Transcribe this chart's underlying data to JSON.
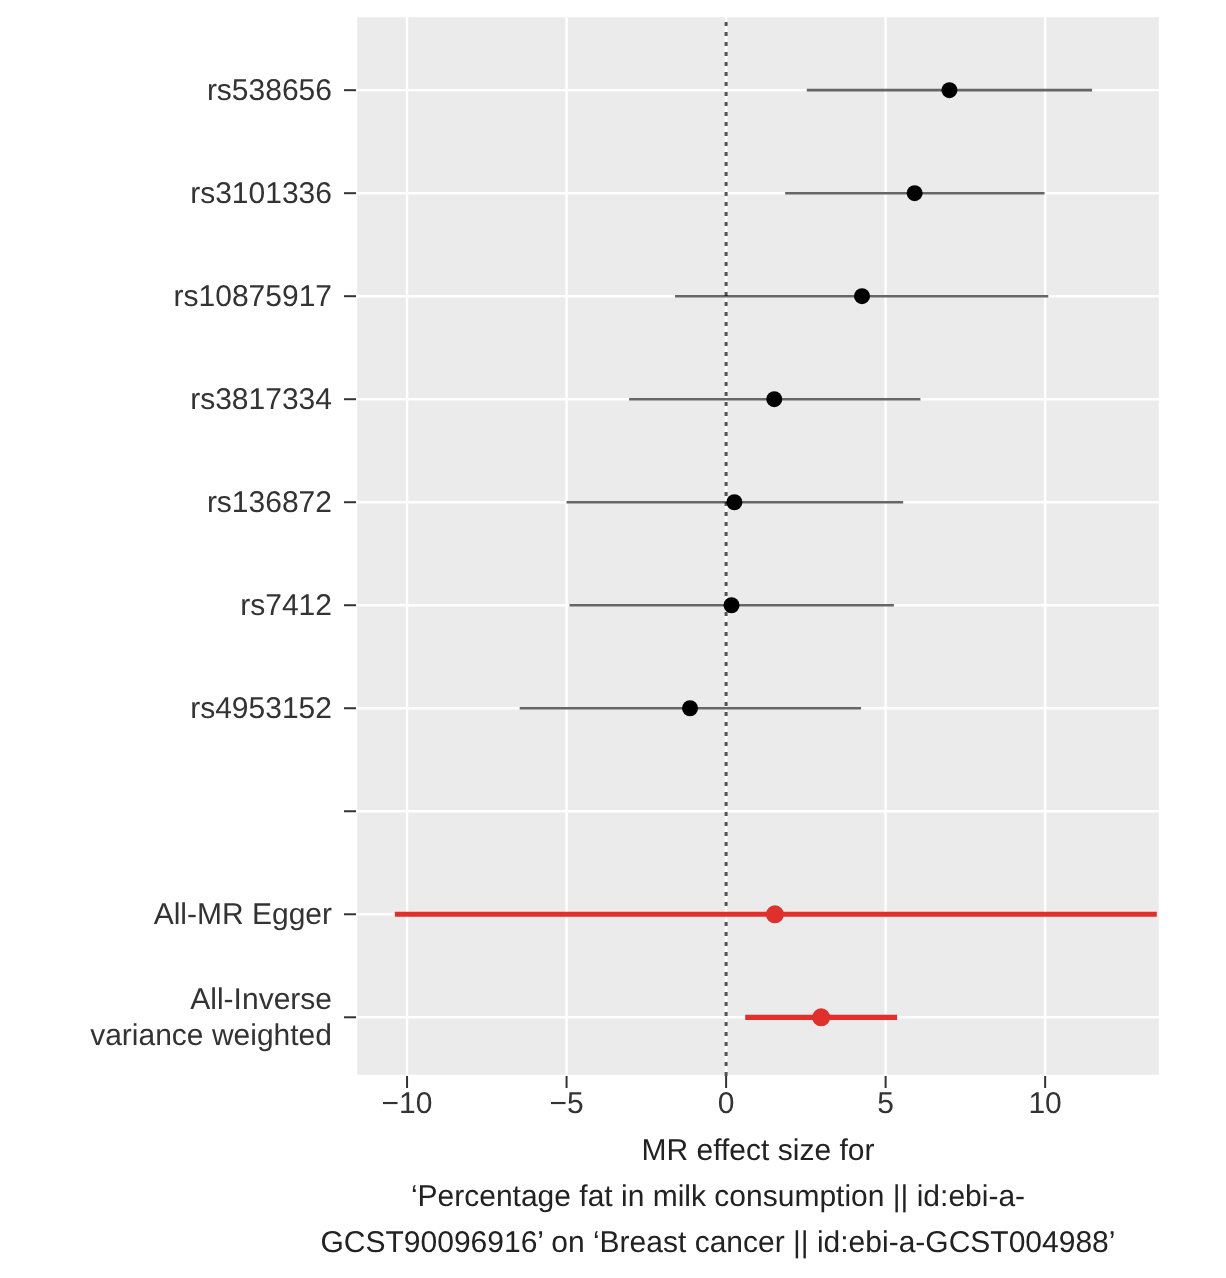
{
  "chart_data": {
    "type": "scatter",
    "orientation": "horizontal",
    "xlabel": "MR effect size for\n‘Percentage fat in milk consumption || id:ebi-a-\nGCST90096916’ on ‘Breast cancer || id:ebi-a-GCST004988’",
    "categories": [
      "rs538656",
      "rs3101336",
      "rs10875917",
      "rs3817334",
      "rs136872",
      "rs7412",
      "rs4953152",
      null,
      "All-MR Egger",
      "All-Inverse\nvariance weighted"
    ],
    "series": [
      {
        "color": "#000000",
        "values": [
          7.0,
          5.91,
          4.26,
          1.51,
          0.26,
          0.17,
          -1.13,
          null,
          null,
          null
        ],
        "errors": [
          [
            2.53,
            11.47
          ],
          [
            1.85,
            9.98
          ],
          [
            -1.6,
            10.1
          ],
          [
            -3.04,
            6.09
          ],
          [
            -5.0,
            5.55
          ],
          [
            -4.91,
            5.26
          ],
          [
            -6.47,
            4.23
          ],
          null,
          null,
          null
        ]
      },
      {
        "color": "#e0302c",
        "values": [
          null,
          null,
          null,
          null,
          null,
          null,
          null,
          null,
          1.53,
          2.98
        ],
        "errors": [
          null,
          null,
          null,
          null,
          null,
          null,
          null,
          null,
          [
            -10.38,
            13.5
          ],
          [
            0.6,
            5.36
          ]
        ]
      }
    ],
    "xlim": [
      -11.6,
      13.6
    ],
    "xticks": [
      {
        "value": -10,
        "label": "−10"
      },
      {
        "value": -5,
        "label": "−5"
      },
      0,
      5,
      10
    ],
    "ref_lines": [
      {
        "axis": "x",
        "value": 0,
        "line_style": "dotted",
        "color": "#555555"
      }
    ],
    "grid": true,
    "marker": "circle"
  }
}
